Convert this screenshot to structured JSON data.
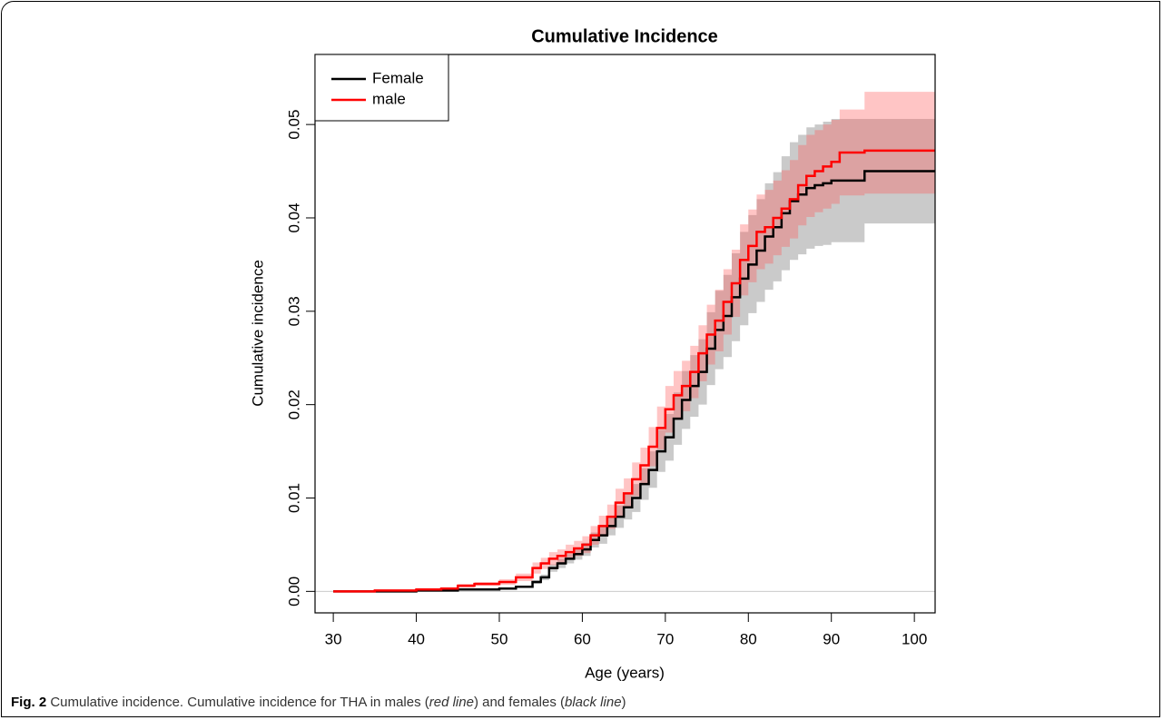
{
  "chart_data": {
    "type": "step",
    "title": "Cumulative Incidence",
    "x_label": "Age (years)",
    "y_label": "Cumulative incidence",
    "x": [
      30,
      35,
      40,
      43,
      45,
      47,
      50,
      52,
      54,
      55,
      56,
      57,
      58,
      59,
      60,
      61,
      62,
      63,
      64,
      65,
      66,
      67,
      68,
      69,
      70,
      71,
      72,
      73,
      74,
      75,
      76,
      77,
      78,
      79,
      80,
      81,
      82,
      83,
      84,
      85,
      86,
      87,
      88,
      89,
      90,
      91,
      94,
      102.5
    ],
    "series": [
      {
        "name": "Female",
        "color": "#000000",
        "band_color": "rgba(150,150,150,0.5)",
        "values": [
          0,
          0,
          0.0001,
          0.0001,
          0.0002,
          0.0002,
          0.0003,
          0.0005,
          0.001,
          0.0015,
          0.0025,
          0.003,
          0.0035,
          0.004,
          0.0045,
          0.0055,
          0.006,
          0.007,
          0.008,
          0.009,
          0.01,
          0.0115,
          0.013,
          0.015,
          0.0165,
          0.0185,
          0.0205,
          0.022,
          0.0235,
          0.026,
          0.028,
          0.0295,
          0.0315,
          0.0335,
          0.035,
          0.0365,
          0.038,
          0.039,
          0.0405,
          0.0418,
          0.0425,
          0.0432,
          0.0435,
          0.0437,
          0.044,
          0.044,
          0.045,
          0.045
        ],
        "lower": [
          0,
          0,
          0,
          0,
          0.0001,
          0.0001,
          0.0002,
          0.0004,
          0.0008,
          0.0012,
          0.0021,
          0.0025,
          0.003,
          0.0034,
          0.0038,
          0.0047,
          0.0051,
          0.006,
          0.0068,
          0.0077,
          0.0085,
          0.0098,
          0.0111,
          0.0128,
          0.014,
          0.0157,
          0.0174,
          0.0187,
          0.02,
          0.0221,
          0.0238,
          0.0251,
          0.0268,
          0.0285,
          0.0298,
          0.031,
          0.0323,
          0.0332,
          0.0344,
          0.0355,
          0.0361,
          0.0367,
          0.037,
          0.0371,
          0.0374,
          0.0374,
          0.0394,
          0.0394
        ],
        "upper": [
          0,
          0,
          0.0001,
          0.0001,
          0.0003,
          0.0003,
          0.0004,
          0.0006,
          0.0012,
          0.0018,
          0.0029,
          0.0035,
          0.004,
          0.0046,
          0.0052,
          0.0063,
          0.0069,
          0.008,
          0.0092,
          0.0104,
          0.0115,
          0.0132,
          0.015,
          0.0173,
          0.019,
          0.0213,
          0.0236,
          0.0253,
          0.027,
          0.0299,
          0.0322,
          0.0339,
          0.0362,
          0.0385,
          0.0403,
          0.042,
          0.0437,
          0.0449,
          0.0466,
          0.0481,
          0.0489,
          0.0497,
          0.05,
          0.0503,
          0.0506,
          0.0506,
          0.0506,
          0.0506
        ]
      },
      {
        "name": "male",
        "color": "#ff0000",
        "band_color": "rgba(255,90,90,0.35)",
        "values": [
          0,
          0.0001,
          0.0002,
          0.0003,
          0.0006,
          0.0008,
          0.001,
          0.0015,
          0.0025,
          0.003,
          0.0035,
          0.0038,
          0.0042,
          0.0046,
          0.005,
          0.006,
          0.007,
          0.008,
          0.0095,
          0.0105,
          0.012,
          0.0135,
          0.0155,
          0.0175,
          0.0195,
          0.021,
          0.022,
          0.0235,
          0.0255,
          0.0275,
          0.029,
          0.031,
          0.033,
          0.0355,
          0.037,
          0.0385,
          0.039,
          0.04,
          0.041,
          0.042,
          0.0435,
          0.0445,
          0.045,
          0.0455,
          0.046,
          0.047,
          0.0472,
          0.0472
        ],
        "lower": [
          0,
          0.0001,
          0.0001,
          0.0002,
          0.0004,
          0.0006,
          0.0007,
          0.0011,
          0.0019,
          0.0024,
          0.0028,
          0.0031,
          0.0034,
          0.0038,
          0.0041,
          0.005,
          0.0059,
          0.0067,
          0.008,
          0.0089,
          0.0102,
          0.0116,
          0.0134,
          0.0152,
          0.017,
          0.0184,
          0.0193,
          0.0207,
          0.0225,
          0.0243,
          0.0257,
          0.0275,
          0.0294,
          0.0317,
          0.0331,
          0.0345,
          0.0351,
          0.036,
          0.0369,
          0.0378,
          0.0392,
          0.0401,
          0.0406,
          0.041,
          0.0415,
          0.0424,
          0.0426,
          0.0426
        ],
        "upper": [
          0,
          0.0001,
          0.0003,
          0.0004,
          0.0008,
          0.001,
          0.0013,
          0.0019,
          0.0031,
          0.0036,
          0.0042,
          0.0045,
          0.005,
          0.0054,
          0.0059,
          0.007,
          0.0081,
          0.0093,
          0.011,
          0.0121,
          0.0138,
          0.0154,
          0.0176,
          0.0198,
          0.022,
          0.0236,
          0.0247,
          0.0263,
          0.0285,
          0.0307,
          0.0323,
          0.0345,
          0.0366,
          0.0393,
          0.0409,
          0.0425,
          0.043,
          0.044,
          0.0451,
          0.0462,
          0.0478,
          0.0489,
          0.0494,
          0.05,
          0.0505,
          0.0516,
          0.0535,
          0.0535
        ]
      }
    ],
    "xlim": [
      27.8,
      102.5
    ],
    "ylim": [
      -0.0023,
      0.0575
    ],
    "xticks": [
      30,
      40,
      50,
      60,
      70,
      80,
      90,
      100
    ],
    "yticks": [
      {
        "value": 0,
        "label": "0.00"
      },
      0.01,
      0.02,
      0.03,
      0.04,
      0.05
    ],
    "legend": "top-left",
    "zero_line": true
  },
  "caption": {
    "label": "Fig. 2",
    "text": " Cumulative incidence. Cumulative incidence for THA in males (",
    "em1": "red line",
    "text2": ") and females (",
    "em2": "black line",
    "text3": ")"
  }
}
